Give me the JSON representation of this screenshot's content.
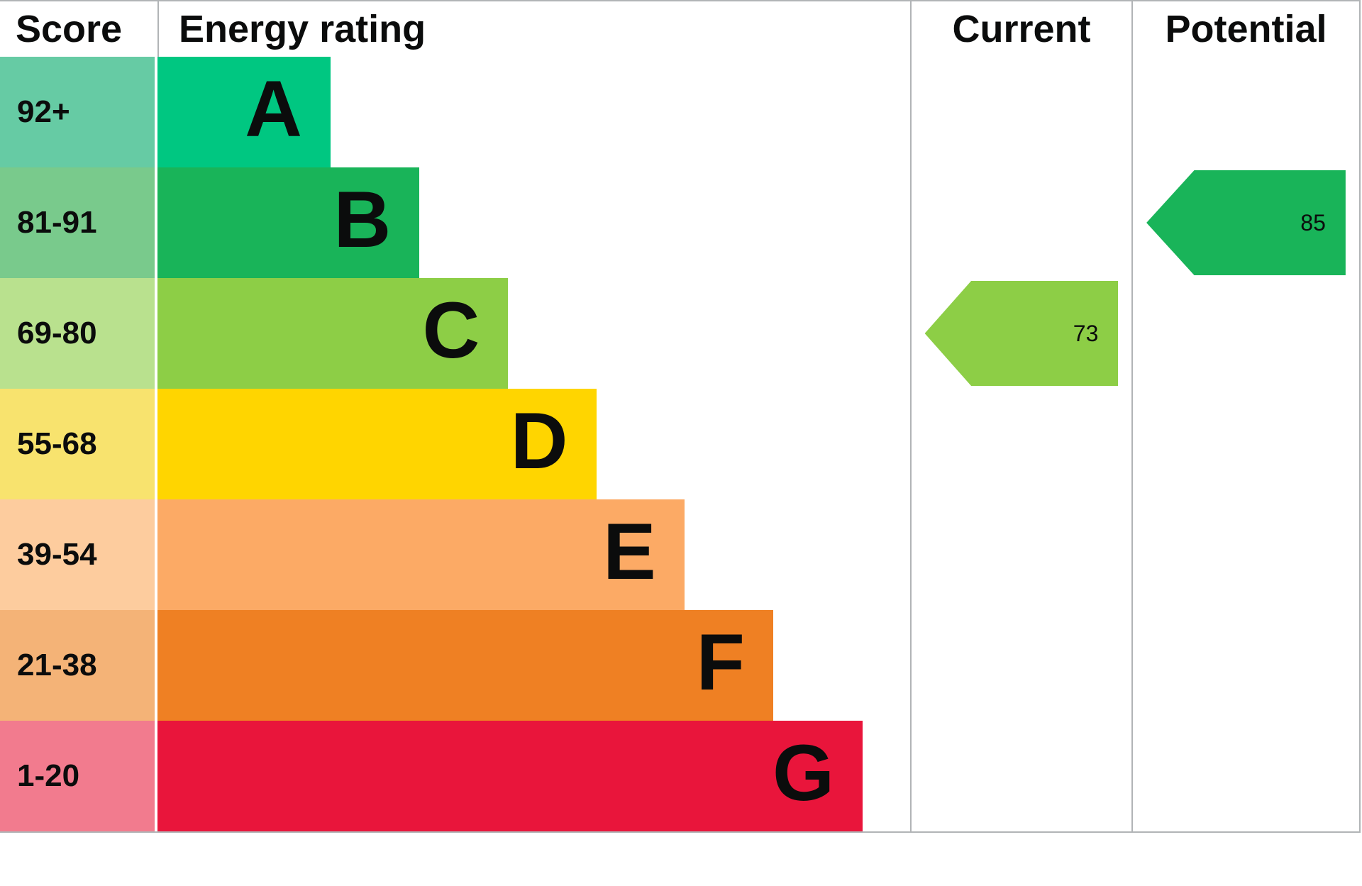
{
  "header": {
    "score": "Score",
    "rating": "Energy rating",
    "current": "Current",
    "potential": "Potential"
  },
  "chart_data": {
    "type": "bar",
    "subtype": "epc-energy-rating",
    "title": "Energy rating",
    "columns": [
      "Score",
      "Energy rating",
      "Current",
      "Potential"
    ],
    "grid": "off",
    "bands": [
      {
        "letter": "A",
        "score_range": "92+",
        "bar_color": "#00c781",
        "score_color": "#66cba4",
        "bar_width_pct": 23.0
      },
      {
        "letter": "B",
        "score_range": "81-91",
        "bar_color": "#19b459",
        "score_color": "#79ca8c",
        "bar_width_pct": 34.8
      },
      {
        "letter": "C",
        "score_range": "69-80",
        "bar_color": "#8dce46",
        "score_color": "#b9e18e",
        "bar_width_pct": 46.6
      },
      {
        "letter": "D",
        "score_range": "55-68",
        "bar_color": "#ffd500",
        "score_color": "#f8e36e",
        "bar_width_pct": 58.3
      },
      {
        "letter": "E",
        "score_range": "39-54",
        "bar_color": "#fcaa65",
        "score_color": "#fdcc9e",
        "bar_width_pct": 70.0
      },
      {
        "letter": "F",
        "score_range": "21-38",
        "bar_color": "#ef8023",
        "score_color": "#f4b377",
        "bar_width_pct": 81.8
      },
      {
        "letter": "G",
        "score_range": "1-20",
        "bar_color": "#e9153b",
        "score_color": "#f27b8e",
        "bar_width_pct": 93.7
      }
    ],
    "current": {
      "value": "73",
      "band": "C",
      "band_index": 2,
      "color": "#8dce46"
    },
    "potential": {
      "value": "85",
      "band": "B",
      "band_index": 1,
      "color": "#19b459"
    },
    "border_color": "#b1b4b6"
  }
}
